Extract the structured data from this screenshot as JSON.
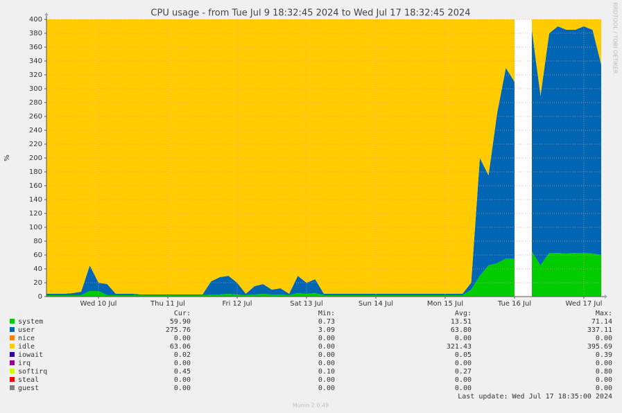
{
  "chart_data": {
    "type": "stacked_area",
    "title": "CPU usage - from Tue Jul  9 18:32:45 2024 to Wed Jul 17 18:32:45 2024",
    "y_label": "%",
    "credit": "RRDTOOL / TOBI OETIKER",
    "last_update": "Last update: Wed Jul 17 18:35:00 2024",
    "footer": "Munin 2.0.49",
    "ylim": [
      0,
      400
    ],
    "yticks": [
      0,
      20,
      40,
      60,
      80,
      100,
      120,
      140,
      160,
      180,
      200,
      220,
      240,
      260,
      280,
      300,
      320,
      340,
      360,
      380,
      400
    ],
    "grid": true,
    "categories": [
      null,
      null,
      null,
      null,
      null,
      null,
      "Wed 10 Jul",
      null,
      null,
      null,
      null,
      null,
      null,
      null,
      "Thu 11 Jul",
      null,
      null,
      null,
      null,
      null,
      null,
      null,
      "Fri 12 Jul",
      null,
      null,
      null,
      null,
      null,
      null,
      null,
      "Sat 13 Jul",
      null,
      null,
      null,
      null,
      null,
      null,
      null,
      "Sun 14 Jul",
      null,
      null,
      null,
      null,
      null,
      null,
      null,
      "Mon 15 Jul",
      null,
      null,
      null,
      null,
      null,
      null,
      null,
      "Tue 16 Jul",
      null,
      null,
      null,
      null,
      null,
      null,
      null,
      "Wed 17 Jul",
      null,
      null
    ],
    "stats_headers": [
      "Cur:",
      "Min:",
      "Avg:",
      "Max:"
    ],
    "series": [
      {
        "name": "system",
        "color": "#00cc00",
        "stats": [
          "59.90",
          "0.73",
          "13.51",
          "71.14"
        ],
        "values": [
          2,
          2,
          2,
          2,
          2,
          8,
          8,
          2,
          2,
          2,
          2,
          2,
          2,
          2,
          2,
          2,
          2,
          2,
          2,
          3,
          3,
          4,
          3,
          2,
          3,
          4,
          3,
          3,
          2,
          5,
          4,
          5,
          2,
          2,
          2,
          2,
          2,
          2,
          2,
          2,
          2,
          2,
          2,
          2,
          2,
          2,
          2,
          2,
          2,
          10,
          30,
          45,
          48,
          55,
          55,
          null,
          65,
          45,
          63,
          63,
          62,
          63,
          63,
          62,
          60
        ]
      },
      {
        "name": "user",
        "color": "#0066b3",
        "stats": [
          "275.76",
          "3.09",
          "63.80",
          "337.11"
        ],
        "values": [
          2,
          2,
          2,
          3,
          5,
          37,
          12,
          16,
          2,
          2,
          2,
          1,
          1,
          1,
          1,
          1,
          1,
          1,
          1,
          19,
          25,
          26,
          17,
          2,
          12,
          14,
          7,
          9,
          2,
          25,
          16,
          20,
          2,
          2,
          2,
          2,
          2,
          2,
          2,
          2,
          2,
          2,
          2,
          2,
          2,
          2,
          2,
          2,
          2,
          10,
          170,
          130,
          217,
          275,
          255,
          null,
          320,
          245,
          317,
          327,
          323,
          322,
          327,
          323,
          275
        ]
      },
      {
        "name": "nice",
        "color": "#ff8000",
        "stats": [
          "0.00",
          "0.00",
          "0.00",
          "0.00"
        ],
        "values": [
          0,
          0,
          0,
          0,
          0,
          0,
          0,
          0,
          0,
          0,
          0,
          0,
          0,
          0,
          0,
          0,
          0,
          0,
          0,
          0,
          0,
          0,
          0,
          0,
          0,
          0,
          0,
          0,
          0,
          0,
          0,
          0,
          0,
          0,
          0,
          0,
          0,
          0,
          0,
          0,
          0,
          0,
          0,
          0,
          0,
          0,
          0,
          0,
          0,
          0,
          0,
          0,
          0,
          0,
          0,
          null,
          0,
          0,
          0,
          0,
          0,
          0,
          0,
          0,
          0
        ]
      },
      {
        "name": "idle",
        "color": "#ffcc00",
        "stats": [
          "63.06",
          "0.00",
          "321.43",
          "395.69"
        ],
        "values": [
          396,
          396,
          396,
          395,
          393,
          355,
          380,
          382,
          396,
          396,
          396,
          397,
          397,
          397,
          397,
          397,
          397,
          397,
          397,
          378,
          372,
          370,
          380,
          396,
          385,
          382,
          390,
          388,
          396,
          370,
          380,
          375,
          396,
          396,
          396,
          396,
          396,
          396,
          396,
          396,
          396,
          396,
          396,
          396,
          396,
          396,
          396,
          396,
          396,
          380,
          200,
          225,
          135,
          70,
          90,
          null,
          15,
          110,
          20,
          10,
          15,
          15,
          10,
          15,
          65
        ]
      },
      {
        "name": "iowait",
        "color": "#330099",
        "stats": [
          "0.02",
          "0.00",
          "0.05",
          "0.39"
        ],
        "values": [
          0,
          0,
          0,
          0,
          0,
          0,
          0,
          0,
          0,
          0,
          0,
          0,
          0,
          0,
          0,
          0,
          0,
          0,
          0,
          0,
          0,
          0,
          0,
          0,
          0,
          0,
          0,
          0,
          0,
          0,
          0,
          0,
          0,
          0,
          0,
          0,
          0,
          0,
          0,
          0,
          0,
          0,
          0,
          0,
          0,
          0,
          0,
          0,
          0,
          0,
          0,
          0,
          0,
          0,
          0,
          null,
          0,
          0,
          0,
          0,
          0,
          0,
          0,
          0,
          0
        ]
      },
      {
        "name": "irq",
        "color": "#990099",
        "stats": [
          "0.00",
          "0.00",
          "0.00",
          "0.00"
        ],
        "values": [
          0,
          0,
          0,
          0,
          0,
          0,
          0,
          0,
          0,
          0,
          0,
          0,
          0,
          0,
          0,
          0,
          0,
          0,
          0,
          0,
          0,
          0,
          0,
          0,
          0,
          0,
          0,
          0,
          0,
          0,
          0,
          0,
          0,
          0,
          0,
          0,
          0,
          0,
          0,
          0,
          0,
          0,
          0,
          0,
          0,
          0,
          0,
          0,
          0,
          0,
          0,
          0,
          0,
          0,
          0,
          null,
          0,
          0,
          0,
          0,
          0,
          0,
          0,
          0,
          0
        ]
      },
      {
        "name": "softirq",
        "color": "#ccff00",
        "stats": [
          "0.45",
          "0.10",
          "0.27",
          "0.80"
        ],
        "values": [
          0,
          0,
          0,
          0,
          0,
          0,
          0,
          0,
          0,
          0,
          0,
          0,
          0,
          0,
          0,
          0,
          0,
          0,
          0,
          0,
          0,
          0,
          0,
          0,
          0,
          0,
          0,
          0,
          0,
          0,
          0,
          0,
          0,
          0,
          0,
          0,
          0,
          0,
          0,
          0,
          0,
          0,
          0,
          0,
          0,
          0,
          0,
          0,
          0,
          0,
          0,
          0,
          0,
          0,
          0,
          null,
          0,
          0,
          0,
          0,
          0,
          0,
          0,
          0,
          0
        ]
      },
      {
        "name": "steal",
        "color": "#ff0000",
        "stats": [
          "0.00",
          "0.00",
          "0.00",
          "0.00"
        ],
        "values": [
          0,
          0,
          0,
          0,
          0,
          0,
          0,
          0,
          0,
          0,
          0,
          0,
          0,
          0,
          0,
          0,
          0,
          0,
          0,
          0,
          0,
          0,
          0,
          0,
          0,
          0,
          0,
          0,
          0,
          0,
          0,
          0,
          0,
          0,
          0,
          0,
          0,
          0,
          0,
          0,
          0,
          0,
          0,
          0,
          0,
          0,
          0,
          0,
          0,
          0,
          0,
          0,
          0,
          0,
          0,
          null,
          0,
          0,
          0,
          0,
          0,
          0,
          0,
          0,
          0
        ]
      },
      {
        "name": "guest",
        "color": "#808080",
        "stats": [
          "0.00",
          "0.00",
          "0.00",
          "0.00"
        ],
        "values": [
          0,
          0,
          0,
          0,
          0,
          0,
          0,
          0,
          0,
          0,
          0,
          0,
          0,
          0,
          0,
          0,
          0,
          0,
          0,
          0,
          0,
          0,
          0,
          0,
          0,
          0,
          0,
          0,
          0,
          0,
          0,
          0,
          0,
          0,
          0,
          0,
          0,
          0,
          0,
          0,
          0,
          0,
          0,
          0,
          0,
          0,
          0,
          0,
          0,
          0,
          0,
          0,
          0,
          0,
          0,
          null,
          0,
          0,
          0,
          0,
          0,
          0,
          0,
          0,
          0
        ]
      }
    ]
  }
}
